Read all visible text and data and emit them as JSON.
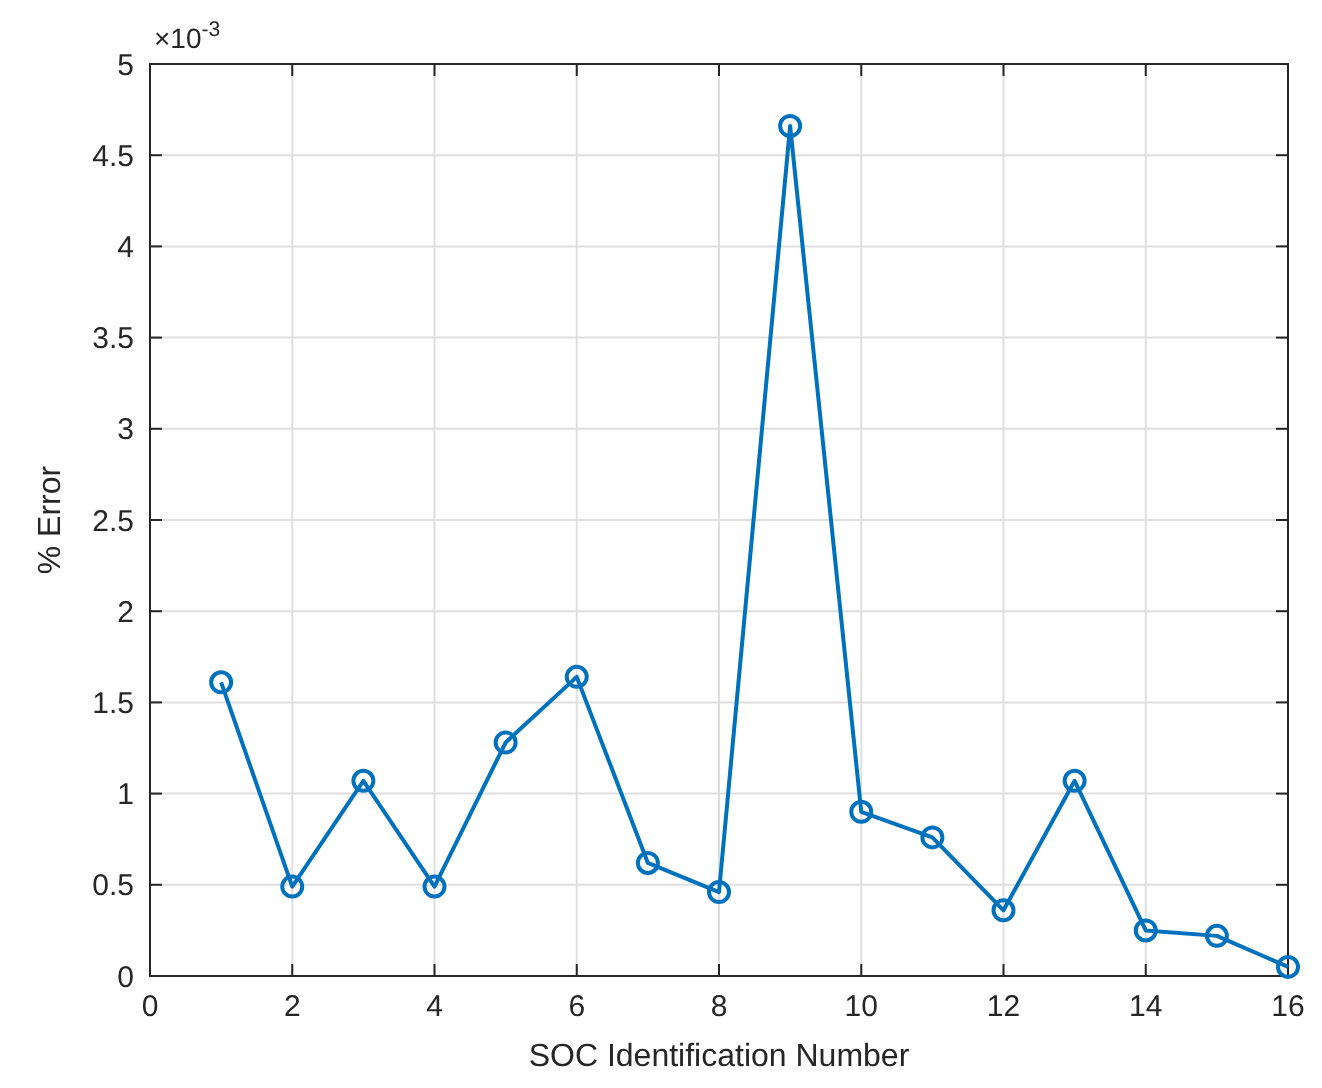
{
  "chart_data": {
    "type": "line",
    "xlabel": "SOC Identification Number",
    "ylabel": "% Error",
    "annotations": [
      "×10$^{-3}$"
    ],
    "x": [
      1,
      2,
      3,
      4,
      5,
      6,
      7,
      8,
      9,
      10,
      11,
      12,
      13,
      14,
      15,
      16
    ],
    "series": [
      {
        "color": "#0072bd",
        "values": [
          1.61,
          0.49,
          1.07,
          0.49,
          1.28,
          1.64,
          0.62,
          0.46,
          4.66,
          0.9,
          0.76,
          0.36,
          1.07,
          0.25,
          0.22,
          0.05
        ]
      }
    ],
    "xlim": [
      0,
      16
    ],
    "ylim": [
      0,
      5
    ],
    "xticks": [
      0,
      2,
      4,
      6,
      8,
      10,
      12,
      14,
      16
    ],
    "yticks": [
      0,
      0.5,
      1,
      1.5,
      2,
      2.5,
      3,
      3.5,
      4,
      4.5,
      5
    ],
    "grid": true,
    "marker": "circle",
    "line_style": "solid"
  }
}
